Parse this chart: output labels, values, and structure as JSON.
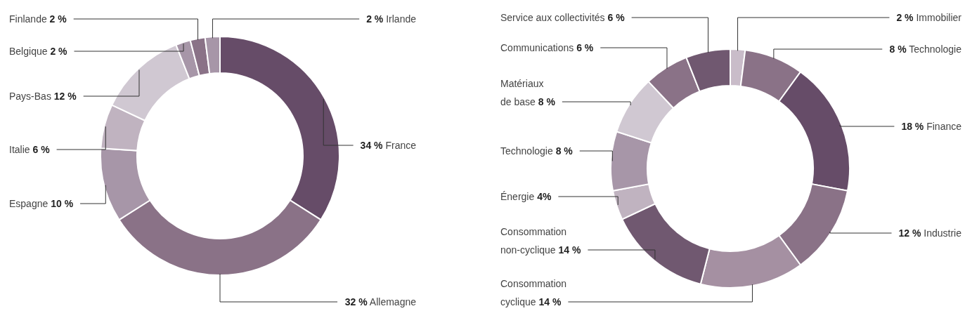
{
  "chart_data": [
    {
      "type": "donut",
      "categories": [
        "France",
        "Allemagne",
        "Espagne",
        "Italie",
        "Pays-Bas",
        "Belgique",
        "Finlande",
        "Irlande"
      ],
      "values": [
        34,
        32,
        10,
        6,
        12,
        2,
        2,
        2
      ],
      "value_labels": [
        "34 %",
        "32 %",
        "10 %",
        "6 %",
        "12 %",
        "2 %",
        "2 %",
        "2 %"
      ],
      "colors": [
        "#664c68",
        "#8a7287",
        "#a796a8",
        "#c0b3c0",
        "#d0c8d2",
        "#a796a8",
        "#8a7287",
        "#a796a8"
      ]
    },
    {
      "type": "donut",
      "categories": [
        "Immobilier",
        "Technologie",
        "Finance",
        "Industrie",
        "Consommation cyclique",
        "Consommation non-cyclique",
        "Énergie",
        "Technologie",
        "Matériaux de base",
        "Communications",
        "Service aux collectivités"
      ],
      "values": [
        2,
        8,
        18,
        12,
        14,
        14,
        4,
        8,
        8,
        6,
        6
      ],
      "value_labels": [
        "2 %",
        "8 %",
        "18 %",
        "12 %",
        "14 %",
        "14 %",
        "4%",
        "8 %",
        "8 %",
        "6 %",
        "6 %"
      ],
      "colors": [
        "#c9bcc9",
        "#8a7287",
        "#664c68",
        "#8a7287",
        "#a590a2",
        "#705870",
        "#c0b3c0",
        "#a796a8",
        "#d0c8d2",
        "#8a7287",
        "#705870"
      ]
    }
  ]
}
